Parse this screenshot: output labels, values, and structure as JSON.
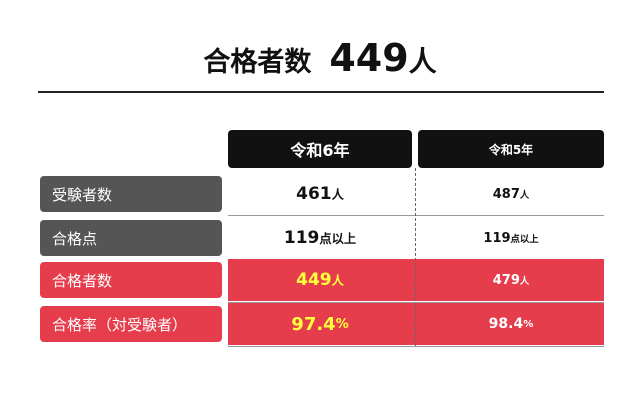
{
  "header": {
    "title": "合格者数",
    "count": "449",
    "unit": "人"
  },
  "table": {
    "columns": [
      "令和6年",
      "令和5年"
    ],
    "rows": [
      {
        "label": "受験者数",
        "cells": [
          {
            "value": "461",
            "unit": "人"
          },
          {
            "value": "487",
            "unit": "人"
          }
        ]
      },
      {
        "label": "合格点",
        "cells": [
          {
            "value": "119",
            "unit": "点以上"
          },
          {
            "value": "119",
            "unit": "点以上"
          }
        ]
      },
      {
        "label": "合格者数",
        "cells": [
          {
            "value": "449",
            "unit": "人"
          },
          {
            "value": "479",
            "unit": "人"
          }
        ]
      },
      {
        "label": "合格率（対受験者）",
        "cells": [
          {
            "value": "97.4",
            "unit": "%"
          },
          {
            "value": "98.4",
            "unit": "%"
          }
        ]
      }
    ]
  }
}
